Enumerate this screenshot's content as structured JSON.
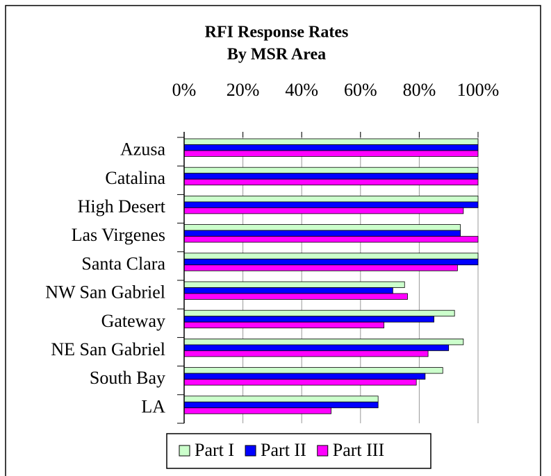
{
  "chart_data": {
    "type": "hbar",
    "title": "RFI Response Rates",
    "subtitle": "By MSR Area",
    "categories": [
      "Azusa",
      "Catalina",
      "High Desert",
      "Las Virgenes",
      "Santa Clara",
      "NW San Gabriel",
      "Gateway",
      "NE San Gabriel",
      "South Bay",
      "LA"
    ],
    "series": [
      {
        "name": "Part I",
        "color": "#ccffcc",
        "values": [
          100,
          100,
          100,
          94,
          100,
          75,
          92,
          95,
          88,
          66
        ]
      },
      {
        "name": "Part II",
        "color": "#0000ff",
        "values": [
          100,
          100,
          100,
          94,
          100,
          71,
          85,
          90,
          82,
          66
        ]
      },
      {
        "name": "Part III",
        "color": "#ff00ff",
        "values": [
          100,
          100,
          95,
          100,
          93,
          76,
          68,
          83,
          79,
          50
        ]
      }
    ],
    "xlim": [
      0,
      100
    ],
    "xticks": [
      {
        "value": 0,
        "label": "0%"
      },
      {
        "value": 20,
        "label": "20%"
      },
      {
        "value": 40,
        "label": "40%"
      },
      {
        "value": 60,
        "label": "60%"
      },
      {
        "value": 80,
        "label": "80%"
      },
      {
        "value": 100,
        "label": "100%"
      }
    ],
    "grid": true,
    "legend": "bottom"
  }
}
